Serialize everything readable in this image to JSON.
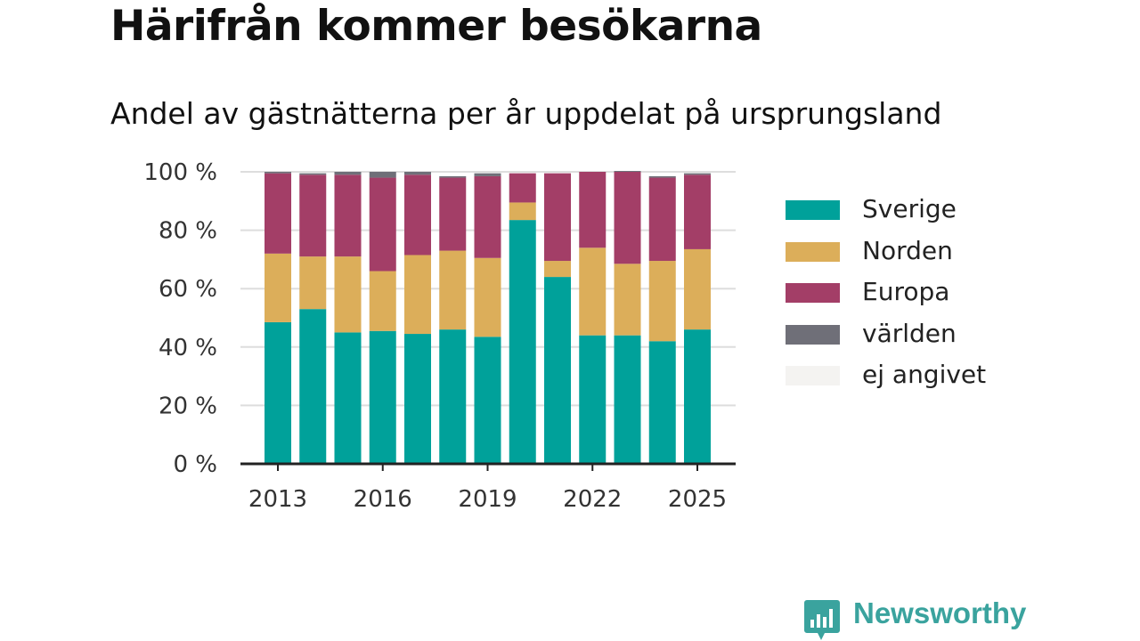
{
  "header": {
    "title": "Härifrån kommer besökarna",
    "subtitle": "Andel av gästnätterna per år uppdelat på ursprungsland"
  },
  "brand": {
    "name": "Newsworthy",
    "icon": "newsworthy-logo-icon",
    "color": "#3aa39e"
  },
  "chart_data": {
    "type": "bar",
    "stacked": true,
    "categories": [
      "2013",
      "2014",
      "2015",
      "2016",
      "2017",
      "2018",
      "2019",
      "2020",
      "2021",
      "2022",
      "2023",
      "2024",
      "2025"
    ],
    "x_tick_labels": [
      "2013",
      "2016",
      "2019",
      "2022",
      "2025"
    ],
    "y_tick_labels": [
      "0 %",
      "20 %",
      "40 %",
      "60 %",
      "80 %",
      "100 %"
    ],
    "ylim": [
      0,
      100
    ],
    "grid": true,
    "legend_position": "right",
    "series": [
      {
        "name": "Sverige",
        "color": "#00a19a",
        "values": [
          48.5,
          53,
          45,
          45.5,
          44.5,
          46,
          43.5,
          83.5,
          64,
          44,
          44,
          42,
          46
        ]
      },
      {
        "name": "Norden",
        "color": "#dcae5a",
        "values": [
          23.5,
          18,
          26,
          20.5,
          27,
          27,
          27,
          6,
          5.5,
          30,
          24.5,
          27.5,
          27.5
        ]
      },
      {
        "name": "Europa",
        "color": "#a33e67",
        "values": [
          27.5,
          28,
          28,
          32,
          27.5,
          25,
          28,
          10,
          30,
          26,
          31.5,
          28.5,
          25.5
        ]
      },
      {
        "name": "världen",
        "color": "#6f6f78",
        "values": [
          0.5,
          0.5,
          1,
          2,
          1,
          0.5,
          1,
          0,
          0,
          0,
          0.3,
          0.5,
          0.5
        ]
      },
      {
        "name": "ej angivet",
        "color": "#f4f3f1",
        "values": [
          0,
          0,
          0,
          0,
          0,
          0,
          0,
          0,
          0,
          0,
          0,
          0,
          0
        ]
      }
    ]
  }
}
